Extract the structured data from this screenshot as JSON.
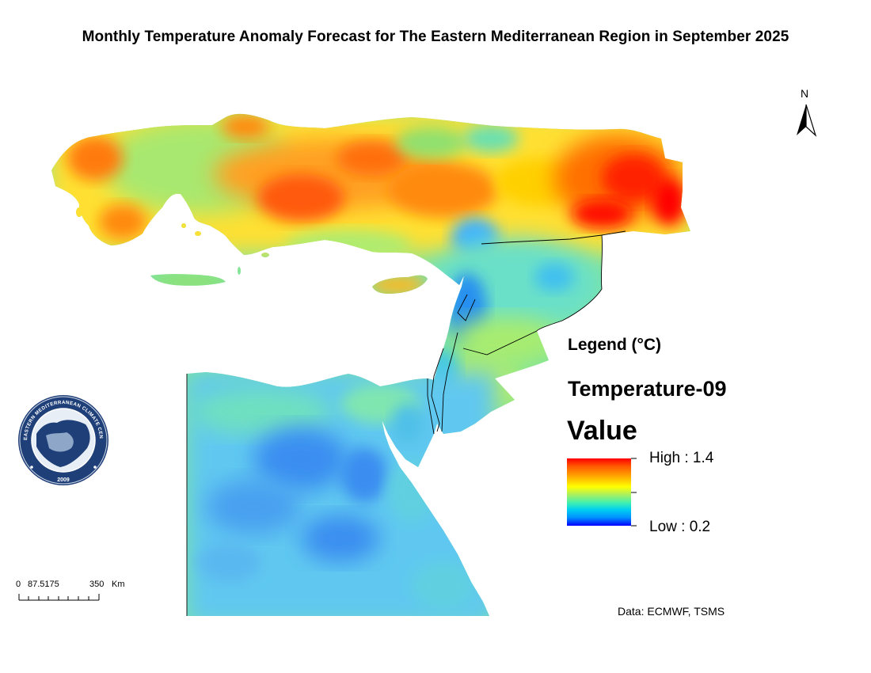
{
  "title": "Monthly Temperature Anomaly Forecast for The Eastern Mediterranean Region in September 2025",
  "north_arrow_label": "N",
  "legend": {
    "heading": "Legend (°C)",
    "layer_name": "Temperature-09",
    "field_name": "Value",
    "high_label": "High : 1.4",
    "low_label": "Low : 0.2",
    "high_value": 1.4,
    "low_value": 0.2
  },
  "scale_bar": {
    "label_0": "0",
    "label_1": "87.5175",
    "label_2": "350",
    "unit": "Km"
  },
  "credits": "Data: ECMWF, TSMS",
  "logo_text": {
    "ring": "EASTERN MEDITERRANEAN CLIMATE CENTRE",
    "year": "2009"
  },
  "colors": {
    "high": "#ff0000",
    "orange": "#ffa500",
    "yellow": "#ffff00",
    "green": "#80f080",
    "cyan": "#40e0f0",
    "light_blue": "#40a0ff",
    "low": "#0000ff",
    "logo_navy": "#1f3f78"
  }
}
